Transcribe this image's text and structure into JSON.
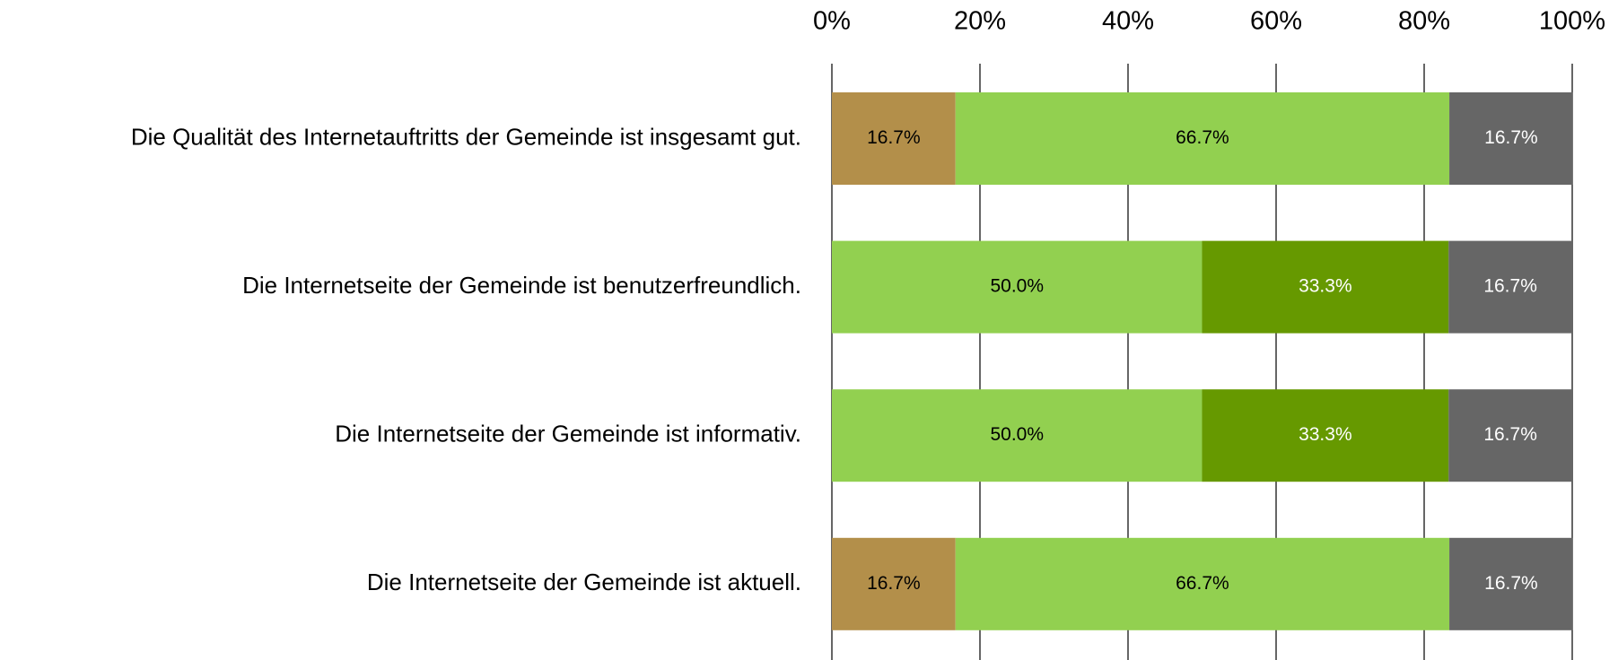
{
  "chart_data": {
    "type": "stacked-barh",
    "categories": [
      "Die Qualität des Internetauftritts der Gemeinde ist insgesamt gut.",
      "Die Internetseite der Gemeinde ist benutzerfreundlich.",
      "Die Internetseite der Gemeinde ist informativ.",
      "Die Internetseite der Gemeinde ist aktuell."
    ],
    "series": [
      {
        "color": "#b38f4a",
        "label_color": "#000000",
        "values": [
          16.7,
          0,
          0,
          16.7
        ],
        "value_labels": [
          "16.7%",
          null,
          null,
          "16.7%"
        ]
      },
      {
        "color": "#92d050",
        "label_color": "#000000",
        "values": [
          66.7,
          50.0,
          50.0,
          66.7
        ],
        "value_labels": [
          "66.7%",
          "50.0%",
          "50.0%",
          "66.7%"
        ]
      },
      {
        "color": "#669900",
        "label_color": "#ffffff",
        "values": [
          0,
          33.3,
          33.3,
          0
        ],
        "value_labels": [
          null,
          "33.3%",
          "33.3%",
          null
        ]
      },
      {
        "color": "#666666",
        "label_color": "#ffffff",
        "values": [
          16.7,
          16.7,
          16.7,
          16.7
        ],
        "value_labels": [
          "16.7%",
          "16.7%",
          "16.7%",
          "16.7%"
        ]
      }
    ],
    "xlim": [
      0,
      100
    ],
    "xticks": [
      {
        "value": 0,
        "label": "0%"
      },
      {
        "value": 20,
        "label": "20%"
      },
      {
        "value": 40,
        "label": "40%"
      },
      {
        "value": 60,
        "label": "60%"
      },
      {
        "value": 80,
        "label": "80%"
      },
      {
        "value": 100,
        "label": "100%"
      }
    ],
    "grid": true
  }
}
